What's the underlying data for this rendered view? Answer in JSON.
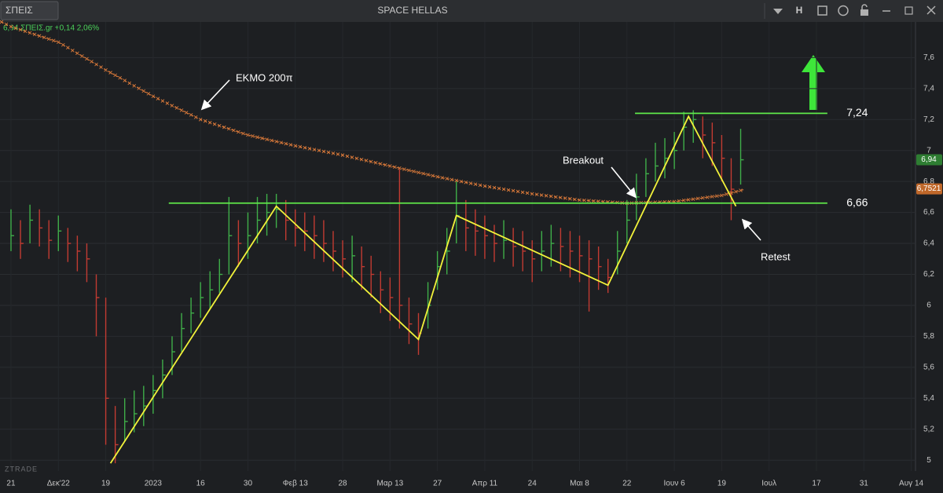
{
  "header": {
    "symbol": "ΣΠΕΙΣ",
    "title": "SPACE HELLAS",
    "mode": "H"
  },
  "quote": "6,94 ΣΠΕΙΣ.gr +0,14 2,06%",
  "brand": "ZTRADE",
  "chart_data": {
    "type": "ohlc",
    "xlim": [
      -2.32,
      190.9
    ],
    "ylim": [
      4.93,
      7.83
    ],
    "xticks": [
      {
        "value": 0,
        "label": "21"
      },
      {
        "value": 10,
        "label": "Δεκ'22"
      },
      {
        "value": 20,
        "label": "19"
      },
      {
        "value": 30,
        "label": "2023"
      },
      {
        "value": 40,
        "label": "16"
      },
      {
        "value": 50,
        "label": "30"
      },
      {
        "value": 60,
        "label": "Φεβ 13"
      },
      {
        "value": 70,
        "label": "28"
      },
      {
        "value": 80,
        "label": "Μαρ 13"
      },
      {
        "value": 90,
        "label": "27"
      },
      {
        "value": 100,
        "label": "Απρ 11"
      },
      {
        "value": 110,
        "label": "24"
      },
      {
        "value": 120,
        "label": "Μαι 8"
      },
      {
        "value": 130,
        "label": "22"
      },
      {
        "value": 140,
        "label": "Ιουν 6"
      },
      {
        "value": 150,
        "label": "19"
      },
      {
        "value": 160,
        "label": "Ιουλ"
      },
      {
        "value": 170,
        "label": "17"
      },
      {
        "value": 180,
        "label": "31"
      },
      {
        "value": 190,
        "label": "Αυγ 14"
      }
    ],
    "yticks": [
      5,
      {
        "value": 5.2,
        "label": "5,2"
      },
      {
        "value": 5.4,
        "label": "5,4"
      },
      {
        "value": 5.6,
        "label": "5,6"
      },
      {
        "value": 5.8,
        "label": "5,8"
      },
      6,
      {
        "value": 6.2,
        "label": "6,2"
      },
      {
        "value": 6.4,
        "label": "6,4"
      },
      {
        "value": 6.6,
        "label": "6,6"
      },
      {
        "value": 6.8,
        "label": "6,8"
      },
      7,
      {
        "value": 7.2,
        "label": "7,2"
      },
      {
        "value": 7.4,
        "label": "7,4"
      },
      {
        "value": 7.6,
        "label": "7,6"
      }
    ],
    "grid": true,
    "up_color": "#3fae49",
    "down_color": "#c23b32",
    "x": [
      0,
      2,
      4,
      6,
      8,
      10,
      12,
      14,
      16,
      18,
      20,
      22,
      24,
      26,
      28,
      30,
      32,
      34,
      36,
      38,
      40,
      42,
      44,
      46,
      48,
      50,
      52,
      54,
      56,
      58,
      60,
      62,
      64,
      66,
      68,
      70,
      72,
      74,
      76,
      78,
      80,
      82,
      84,
      86,
      88,
      90,
      92,
      94,
      96,
      98,
      100,
      102,
      104,
      106,
      108,
      110,
      112,
      114,
      116,
      118,
      120,
      122,
      124,
      126,
      128,
      130,
      132,
      134,
      136,
      138,
      140,
      142,
      144,
      146,
      148,
      150,
      152,
      154
    ],
    "high": [
      6.62,
      6.55,
      6.65,
      6.62,
      6.55,
      6.58,
      6.5,
      6.45,
      6.4,
      6.2,
      6.05,
      5.35,
      5.4,
      5.45,
      5.48,
      5.55,
      5.65,
      5.8,
      5.95,
      6.05,
      6.15,
      6.22,
      6.3,
      6.7,
      6.55,
      6.6,
      6.7,
      6.72,
      6.72,
      6.68,
      6.62,
      6.6,
      6.58,
      6.55,
      6.48,
      6.42,
      6.45,
      6.38,
      6.32,
      6.22,
      6.18,
      6.88,
      6.05,
      5.95,
      6.15,
      6.35,
      6.5,
      6.8,
      6.68,
      6.62,
      6.58,
      6.52,
      6.55,
      6.5,
      6.48,
      6.42,
      6.48,
      6.52,
      6.5,
      6.48,
      6.45,
      6.42,
      6.38,
      6.3,
      6.48,
      6.68,
      6.85,
      6.95,
      7.05,
      7.08,
      7.12,
      7.25,
      7.26,
      7.22,
      7.18,
      7.1,
      6.95,
      7.14
    ],
    "low": [
      6.35,
      6.3,
      6.4,
      6.38,
      6.3,
      6.35,
      6.28,
      6.22,
      6.15,
      5.8,
      5.1,
      4.98,
      5.12,
      5.18,
      5.22,
      5.3,
      5.4,
      5.55,
      5.7,
      5.82,
      5.92,
      5.98,
      6.08,
      6.2,
      6.25,
      6.3,
      6.4,
      6.45,
      6.5,
      6.42,
      6.38,
      6.35,
      6.3,
      6.28,
      6.22,
      6.18,
      6.15,
      6.1,
      6.05,
      5.95,
      5.9,
      5.85,
      5.75,
      5.68,
      5.85,
      6.1,
      6.2,
      6.4,
      6.35,
      6.32,
      6.3,
      6.28,
      6.3,
      6.25,
      6.22,
      6.15,
      6.22,
      6.25,
      6.22,
      6.18,
      6.15,
      5.96,
      6.1,
      6.08,
      6.2,
      6.4,
      6.55,
      6.7,
      6.8,
      6.82,
      6.88,
      7.0,
      7.05,
      6.95,
      6.9,
      6.8,
      6.55,
      6.78
    ],
    "close": [
      6.45,
      6.4,
      6.55,
      6.5,
      6.42,
      6.48,
      6.4,
      6.35,
      6.3,
      6.05,
      5.4,
      5.1,
      5.25,
      5.3,
      5.35,
      5.45,
      5.55,
      5.7,
      5.85,
      5.95,
      6.05,
      6.1,
      6.2,
      6.45,
      6.4,
      6.45,
      6.55,
      6.6,
      6.62,
      6.55,
      6.5,
      6.48,
      6.45,
      6.4,
      6.35,
      6.3,
      6.32,
      6.25,
      6.2,
      6.1,
      6.05,
      6.0,
      5.88,
      5.82,
      6.0,
      6.25,
      6.35,
      6.58,
      6.5,
      6.48,
      6.45,
      6.4,
      6.42,
      6.38,
      6.35,
      6.3,
      6.35,
      6.4,
      6.38,
      6.35,
      6.32,
      6.3,
      6.25,
      6.18,
      6.35,
      6.55,
      6.7,
      6.85,
      6.9,
      6.95,
      7.0,
      7.15,
      7.2,
      7.1,
      7.05,
      6.95,
      6.75,
      6.94
    ],
    "ma": {
      "color": "#d9793a",
      "x": [
        -2,
        0,
        10,
        20,
        30,
        40,
        50,
        60,
        70,
        80,
        90,
        100,
        110,
        120,
        130,
        140,
        150,
        155
      ],
      "values": [
        7.83,
        7.8,
        7.7,
        7.52,
        7.35,
        7.2,
        7.1,
        7.03,
        6.97,
        6.9,
        6.83,
        6.77,
        6.72,
        6.68,
        6.66,
        6.67,
        6.71,
        6.75
      ]
    },
    "pattern": {
      "color": "#f2f23a",
      "x": [
        21,
        56,
        86,
        94,
        126,
        143,
        153
      ],
      "values": [
        4.98,
        6.64,
        5.78,
        6.58,
        6.13,
        7.22,
        6.64
      ]
    },
    "levels": [
      {
        "label": "6,66",
        "value": 6.66,
        "x": [
          33.3,
          172.3
        ]
      },
      {
        "label": "7,24",
        "value": 7.24,
        "x": [
          131.7,
          172.3
        ]
      }
    ],
    "level_color": "#5fe84a",
    "notes": [
      "ΕΚΜΟ 200π",
      "Breakout",
      "Retest"
    ],
    "badges": [
      {
        "label": "6,94",
        "value": 6.94,
        "color": "#2e7d32"
      },
      {
        "label": "6,7521",
        "value": 6.7521,
        "color": "#c0682a"
      }
    ]
  }
}
